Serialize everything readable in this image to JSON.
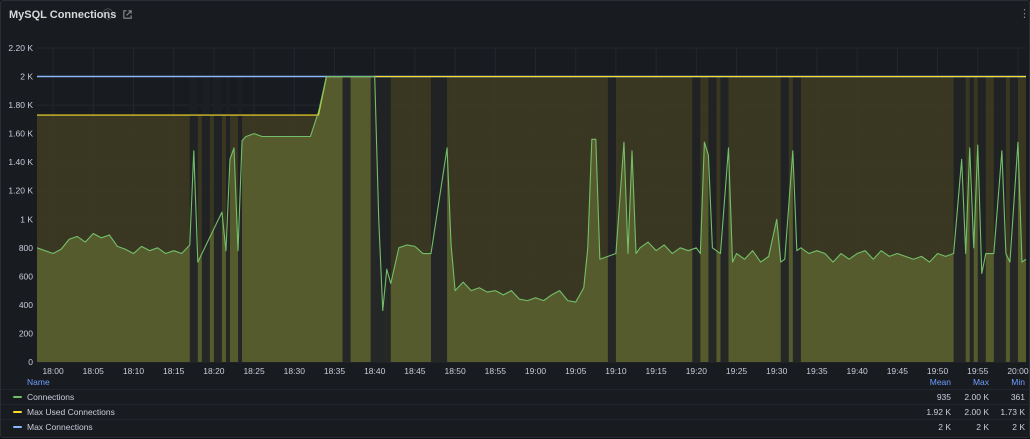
{
  "panel": {
    "title": "MySQL Connections",
    "info_icon": "info-icon",
    "link_icon": "external-link-icon",
    "menu_icon": "vertical-ellipsis-icon"
  },
  "colors": {
    "connections": "#73bf69",
    "max_used": "#fade2a",
    "max_connections": "#8ab8ff",
    "fill": "#5c6230"
  },
  "chart_data": {
    "type": "area",
    "y_ticks": [
      "0",
      "200",
      "400",
      "600",
      "800",
      "1 K",
      "1.20 K",
      "1.40 K",
      "1.60 K",
      "1.80 K",
      "2 K",
      "2.20 K"
    ],
    "ylim": [
      0,
      2200
    ],
    "x_ticks": [
      "18:00",
      "18:05",
      "18:10",
      "18:15",
      "18:20",
      "18:25",
      "18:30",
      "18:35",
      "18:40",
      "18:45",
      "18:50",
      "18:55",
      "19:00",
      "19:05",
      "19:10",
      "19:15",
      "19:20",
      "19:25",
      "19:30",
      "19:35",
      "19:40",
      "19:45",
      "19:50",
      "19:55",
      "20:00"
    ],
    "xlim": [
      "17:58",
      "20:01"
    ],
    "series": [
      {
        "name": "Connections",
        "points": [
          [
            "17:58",
            800
          ],
          [
            "17:59",
            780
          ],
          [
            "18:00",
            760
          ],
          [
            "18:01",
            790
          ],
          [
            "18:02",
            860
          ],
          [
            "18:03",
            880
          ],
          [
            "18:04",
            840
          ],
          [
            "18:05",
            900
          ],
          [
            "18:06",
            870
          ],
          [
            "18:07",
            890
          ],
          [
            "18:08",
            810
          ],
          [
            "18:09",
            790
          ],
          [
            "18:10",
            760
          ],
          [
            "18:11",
            810
          ],
          [
            "18:12",
            780
          ],
          [
            "18:13",
            800
          ],
          [
            "18:14",
            760
          ],
          [
            "18:15",
            780
          ],
          [
            "18:16",
            760
          ],
          [
            "18:17",
            820
          ],
          [
            "18:17.5",
            1480
          ],
          [
            "18:18",
            700
          ],
          [
            "18:21",
            1050
          ],
          [
            "18:21.5",
            780
          ],
          [
            "18:22",
            1420
          ],
          [
            "18:22.5",
            1500
          ],
          [
            "18:23",
            780
          ],
          [
            "18:23.5",
            1550
          ],
          [
            "18:24",
            1580
          ],
          [
            "18:25",
            1600
          ],
          [
            "18:26",
            1580
          ],
          [
            "18:27",
            1580
          ],
          [
            "18:28",
            1580
          ],
          [
            "18:29",
            1580
          ],
          [
            "18:30",
            1580
          ],
          [
            "18:31",
            1580
          ],
          [
            "18:32",
            1580
          ],
          [
            "18:33",
            1750
          ],
          [
            "18:34",
            2000
          ],
          [
            "18:35",
            2000
          ],
          [
            "18:36",
            2000
          ],
          [
            "18:37",
            2000
          ],
          [
            "18:38",
            2000
          ],
          [
            "18:39",
            2000
          ],
          [
            "18:40",
            2000
          ],
          [
            "18:40.5",
            1000
          ],
          [
            "18:41",
            360
          ],
          [
            "18:41.5",
            650
          ],
          [
            "18:42",
            550
          ],
          [
            "18:43",
            800
          ],
          [
            "18:44",
            820
          ],
          [
            "18:45",
            810
          ],
          [
            "18:46",
            760
          ],
          [
            "18:47",
            760
          ],
          [
            "18:49",
            1500
          ],
          [
            "18:49.5",
            820
          ],
          [
            "18:50",
            500
          ],
          [
            "18:51",
            560
          ],
          [
            "18:52",
            500
          ],
          [
            "18:53",
            520
          ],
          [
            "18:54",
            490
          ],
          [
            "18:55",
            500
          ],
          [
            "18:56",
            470
          ],
          [
            "18:57",
            500
          ],
          [
            "18:58",
            440
          ],
          [
            "18:59",
            430
          ],
          [
            "19:00",
            450
          ],
          [
            "19:01",
            430
          ],
          [
            "19:02",
            470
          ],
          [
            "19:03",
            500
          ],
          [
            "19:04",
            430
          ],
          [
            "19:05",
            420
          ],
          [
            "19:06",
            520
          ],
          [
            "19:06.5",
            800
          ],
          [
            "19:07",
            1560
          ],
          [
            "19:07.5",
            1560
          ],
          [
            "19:08",
            720
          ],
          [
            "19:09",
            740
          ],
          [
            "19:10",
            760
          ],
          [
            "19:11",
            1540
          ],
          [
            "19:11.5",
            760
          ],
          [
            "19:12",
            1480
          ],
          [
            "19:12.5",
            760
          ],
          [
            "19:13",
            800
          ],
          [
            "19:14",
            840
          ],
          [
            "19:15",
            780
          ],
          [
            "19:16",
            820
          ],
          [
            "19:17",
            760
          ],
          [
            "19:18",
            800
          ],
          [
            "19:19",
            780
          ],
          [
            "19:20",
            800
          ],
          [
            "19:20.5",
            760
          ],
          [
            "19:21",
            1540
          ],
          [
            "19:21.5",
            1450
          ],
          [
            "19:22",
            800
          ],
          [
            "19:23",
            760
          ],
          [
            "19:24",
            1500
          ],
          [
            "19:24.5",
            700
          ],
          [
            "19:25",
            760
          ],
          [
            "19:26",
            720
          ],
          [
            "19:27",
            780
          ],
          [
            "19:28",
            700
          ],
          [
            "19:29",
            740
          ],
          [
            "19:30",
            1000
          ],
          [
            "19:30.5",
            700
          ],
          [
            "19:31",
            720
          ],
          [
            "19:32",
            1480
          ],
          [
            "19:32.5",
            780
          ],
          [
            "19:33",
            800
          ],
          [
            "19:34",
            760
          ],
          [
            "19:35",
            780
          ],
          [
            "19:36",
            760
          ],
          [
            "19:37",
            700
          ],
          [
            "19:38",
            760
          ],
          [
            "19:39",
            720
          ],
          [
            "19:40",
            760
          ],
          [
            "19:41",
            780
          ],
          [
            "19:42",
            720
          ],
          [
            "19:43",
            780
          ],
          [
            "19:44",
            740
          ],
          [
            "19:45",
            760
          ],
          [
            "19:46",
            740
          ],
          [
            "19:47",
            720
          ],
          [
            "19:48",
            740
          ],
          [
            "19:49",
            700
          ],
          [
            "19:50",
            760
          ],
          [
            "19:51",
            740
          ],
          [
            "19:52",
            760
          ],
          [
            "19:53",
            1420
          ],
          [
            "19:53.5",
            760
          ],
          [
            "19:54",
            1500
          ],
          [
            "19:54.5",
            800
          ],
          [
            "19:55",
            1520
          ],
          [
            "19:55.5",
            620
          ],
          [
            "19:56",
            760
          ],
          [
            "19:57",
            760
          ],
          [
            "19:58",
            1480
          ],
          [
            "19:58.5",
            760
          ],
          [
            "19:59",
            700
          ],
          [
            "20:00",
            1540
          ],
          [
            "20:00.5",
            700
          ],
          [
            "20:01",
            720
          ]
        ]
      },
      {
        "name": "Max Used Connections",
        "points": [
          [
            "17:58",
            1730
          ],
          [
            "18:33",
            1730
          ],
          [
            "18:34",
            2000
          ],
          [
            "20:01",
            2000
          ]
        ]
      },
      {
        "name": "Max Connections",
        "points": [
          [
            "17:58",
            2000
          ],
          [
            "20:01",
            2000
          ]
        ]
      }
    ],
    "gaps": [
      [
        "18:17",
        "18:18"
      ],
      [
        "18:18.5",
        "18:19.5"
      ],
      [
        "18:20",
        "18:21"
      ],
      [
        "18:21.5",
        "18:22"
      ],
      [
        "18:23",
        "18:23.5"
      ],
      [
        "18:36",
        "18:37"
      ],
      [
        "18:39.5",
        "18:41.5"
      ],
      [
        "18:41.5",
        "18:42"
      ],
      [
        "18:47",
        "18:49"
      ],
      [
        "19:09",
        "19:10"
      ],
      [
        "19:19.5",
        "19:20.5"
      ],
      [
        "19:21.5",
        "19:22.5"
      ],
      [
        "19:23",
        "19:24"
      ],
      [
        "19:30.5",
        "19:31.5"
      ],
      [
        "19:32",
        "19:33"
      ],
      [
        "19:52",
        "19:53.5"
      ],
      [
        "19:54",
        "19:54.5"
      ],
      [
        "19:55",
        "19:56"
      ],
      [
        "19:57",
        "19:58.5"
      ],
      [
        "19:59",
        "20:00"
      ]
    ],
    "legend": {
      "placement": "bottom",
      "headers": {
        "name": "Name",
        "mean": "Mean",
        "max": "Max",
        "min": "Min"
      },
      "rows": [
        {
          "name": "Connections",
          "mean": "935",
          "max": "2.00 K",
          "min": "361"
        },
        {
          "name": "Max Used Connections",
          "mean": "1.92 K",
          "max": "2.00 K",
          "min": "1.73 K"
        },
        {
          "name": "Max Connections",
          "mean": "2 K",
          "max": "2 K",
          "min": "2 K"
        }
      ]
    }
  }
}
